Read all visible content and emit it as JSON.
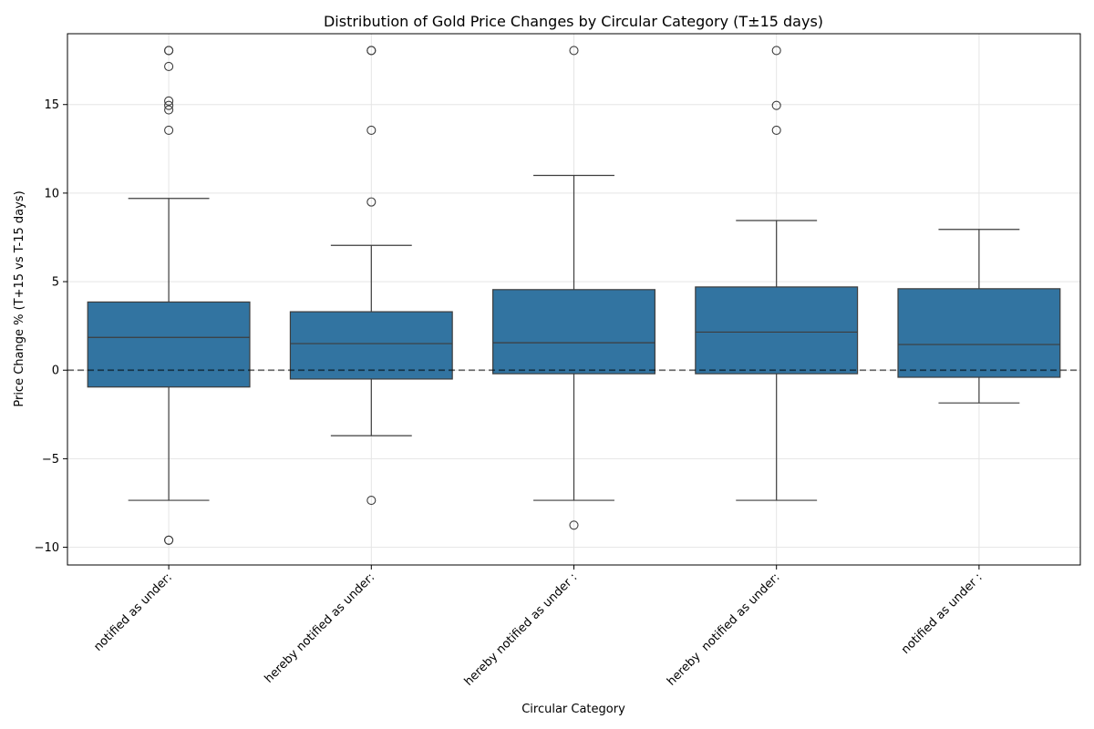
{
  "chart_data": {
    "type": "box",
    "title": "Distribution of Gold Price Changes by Circular Category (T±15 days)",
    "xlabel": "Circular Category",
    "ylabel": "Price Change % (T+15 vs T-15 days)",
    "ylim": [
      -11,
      19
    ],
    "yticks": [
      -10,
      -5,
      0,
      5,
      10,
      15
    ],
    "grid": true,
    "reference_line": {
      "y": 0,
      "style": "dashed"
    },
    "box_color": "#3274a1",
    "categories": [
      "notified as under:",
      "hereby notified as under:",
      "hereby notified as under :",
      "hereby  notified as under:",
      "notified as under :"
    ],
    "boxes": [
      {
        "category": "notified as under:",
        "q1": -0.95,
        "median": 1.85,
        "q3": 3.85,
        "whisker_low": -7.35,
        "whisker_high": 9.7,
        "outliers": [
          18.05,
          18.05,
          17.15,
          15.2,
          14.95,
          14.7,
          13.55,
          -9.6,
          -9.6
        ]
      },
      {
        "category": "hereby notified as under:",
        "q1": -0.5,
        "median": 1.5,
        "q3": 3.3,
        "whisker_low": -3.7,
        "whisker_high": 7.05,
        "outliers": [
          18.05,
          18.05,
          13.55,
          9.5,
          -7.35
        ]
      },
      {
        "category": "hereby notified as under :",
        "q1": -0.2,
        "median": 1.55,
        "q3": 4.55,
        "whisker_low": -7.35,
        "whisker_high": 11.0,
        "outliers": [
          18.05,
          -8.75
        ]
      },
      {
        "category": "hereby  notified as under:",
        "q1": -0.2,
        "median": 2.15,
        "q3": 4.7,
        "whisker_low": -7.35,
        "whisker_high": 8.45,
        "outliers": [
          18.05,
          14.95,
          13.55
        ]
      },
      {
        "category": "notified as under :",
        "q1": -0.4,
        "median": 1.45,
        "q3": 4.6,
        "whisker_low": -1.85,
        "whisker_high": 7.95,
        "outliers": []
      }
    ]
  }
}
